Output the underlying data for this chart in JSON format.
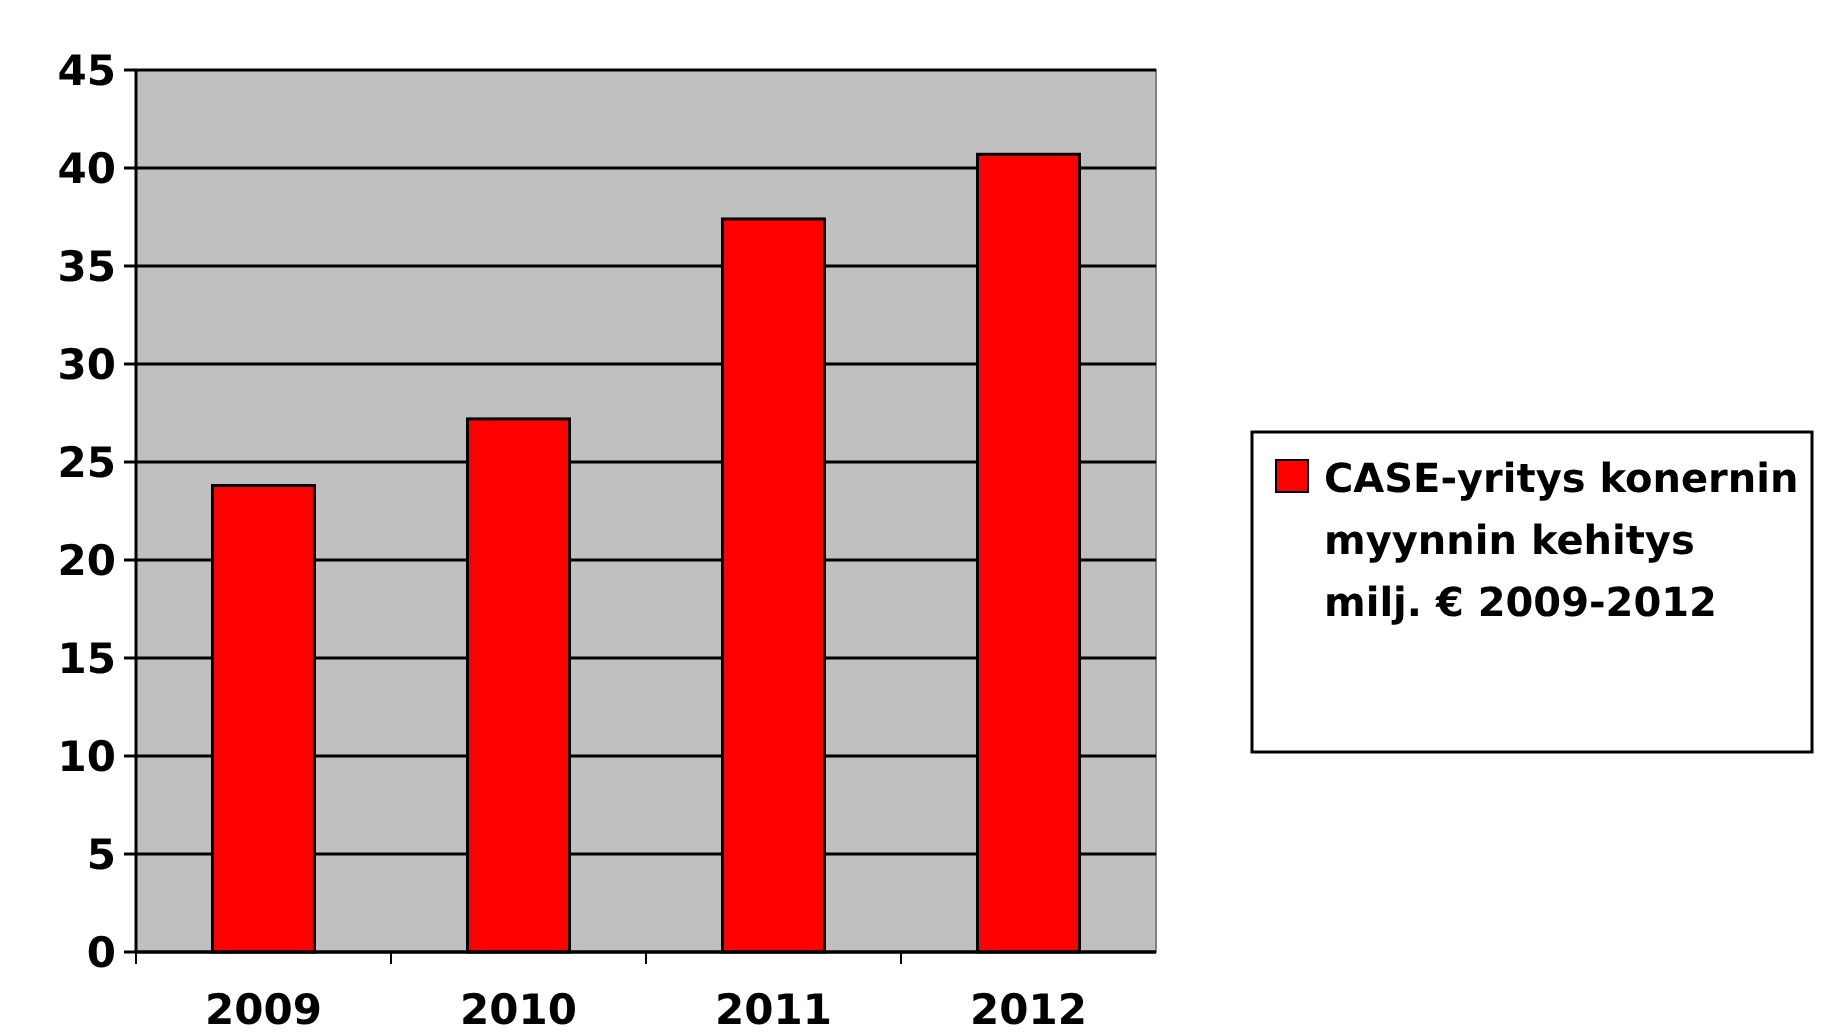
{
  "chart_data": {
    "type": "bar",
    "categories": [
      "2009",
      "2010",
      "2011",
      "2012"
    ],
    "series": [
      {
        "name": "CASE-yritys konernin myynnin kehitys milj. € 2009-2012",
        "color": "#ff0000",
        "values": [
          23.8,
          27.2,
          37.4,
          40.7
        ]
      }
    ],
    "ylim": [
      0,
      45
    ],
    "yticks": [
      0,
      5,
      10,
      15,
      20,
      25,
      30,
      35,
      40,
      45
    ],
    "grid": "y",
    "legend": "right"
  }
}
